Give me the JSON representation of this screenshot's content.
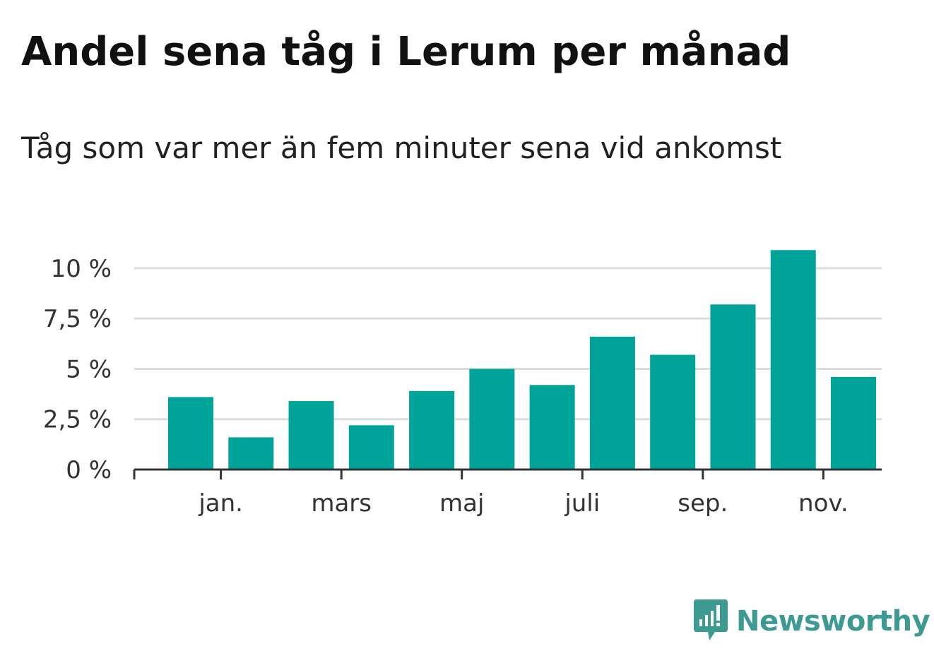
{
  "title": "Andel sena tåg i Lerum per månad",
  "subtitle": "Tåg som var mer än fem minuter sena vid ankomst",
  "brand": {
    "name": "Newsworthy",
    "icon": "newsworthy-logo-icon",
    "color": "#3c9a92"
  },
  "chart_data": {
    "type": "bar",
    "color": "#00a398",
    "grid": true,
    "x_tick_labels": [
      {
        "label": "jan.",
        "index": 1
      },
      {
        "label": "mars",
        "index": 3
      },
      {
        "label": "maj",
        "index": 5
      },
      {
        "label": "juli",
        "index": 7
      },
      {
        "label": "sep.",
        "index": 9
      },
      {
        "label": "nov.",
        "index": 11
      }
    ],
    "values": [
      3.6,
      1.6,
      3.4,
      2.2,
      3.9,
      5.0,
      4.2,
      6.6,
      5.7,
      8.2,
      10.9,
      4.6
    ],
    "y_ticks": [
      {
        "value": 0,
        "label": "0 %"
      },
      {
        "value": 2.5,
        "label": "2,5 %"
      },
      {
        "value": 5,
        "label": "5 %"
      },
      {
        "value": 7.5,
        "label": "7,5 %"
      },
      {
        "value": 10,
        "label": "10 %"
      }
    ],
    "ylim": [
      0,
      11.4
    ]
  }
}
